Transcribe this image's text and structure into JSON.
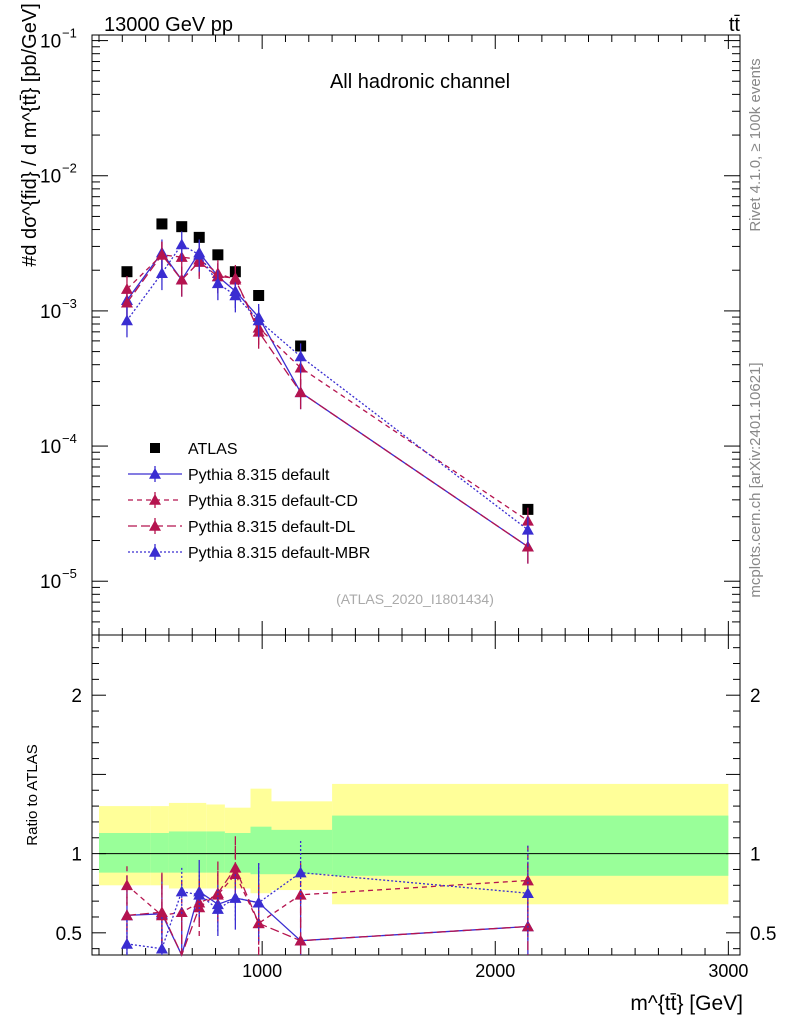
{
  "header": {
    "left": "13000 GeV pp",
    "right": "tt̄"
  },
  "side_labels": {
    "rivet": "Rivet 4.1.0, ≥ 100k events",
    "mcplots": "mcplots.cern.ch [arXiv:2401.10621]"
  },
  "chart_data": {
    "type": "line",
    "title": "All hadronic channel",
    "analysis_id": "(ATLAS_2020_I1801434)",
    "xlabel": "m^{tt̄} [GeV]",
    "ylabel": "#d dσ^{fid} / d m^{tt̄} [pb/GeV]",
    "ratio_ylabel": "Ratio to ATLAS",
    "xlim": [
      270,
      3050
    ],
    "ylim": [
      4e-06,
      0.11
    ],
    "ratio_ylim": [
      0.36,
      2.38
    ],
    "log_y": true,
    "x_ticks": [
      1000,
      2000,
      3000
    ],
    "y_ticks": [
      {
        "value": 0.1,
        "base": "10",
        "exp": "−1"
      },
      {
        "value": 0.01,
        "base": "10",
        "exp": "−2"
      },
      {
        "value": 0.001,
        "base": "10",
        "exp": "−3"
      },
      {
        "value": 0.0001,
        "base": "10",
        "exp": "−4"
      },
      {
        "value": 1e-05,
        "base": "10",
        "exp": "−5"
      }
    ],
    "ratio_ticks": [
      {
        "value": 0.5,
        "label": "0.5"
      },
      {
        "value": 1,
        "label": "1"
      },
      {
        "value": 2,
        "label": "2"
      }
    ],
    "x": [
      420,
      570,
      655,
      730,
      810,
      885,
      985,
      1165,
      2140
    ],
    "x_edges": [
      300,
      450,
      530,
      610,
      690,
      770,
      850,
      950,
      1050,
      1300,
      3000
    ],
    "band_inner": [
      [
        0.88,
        1.13
      ],
      [
        0.88,
        1.13
      ],
      [
        0.88,
        1.14
      ],
      [
        0.88,
        1.14
      ],
      [
        0.88,
        1.14
      ],
      [
        0.88,
        1.13
      ],
      [
        0.87,
        1.17
      ],
      [
        0.87,
        1.15
      ],
      [
        0.86,
        1.24
      ]
    ],
    "band_outer": [
      [
        0.8,
        1.3
      ],
      [
        0.8,
        1.3
      ],
      [
        0.78,
        1.32
      ],
      [
        0.78,
        1.32
      ],
      [
        0.78,
        1.31
      ],
      [
        0.78,
        1.29
      ],
      [
        0.75,
        1.41
      ],
      [
        0.77,
        1.33
      ],
      [
        0.68,
        1.44
      ]
    ],
    "band_x_edges": [
      300,
      520,
      600,
      680,
      760,
      840,
      950,
      1040,
      1300,
      3000
    ],
    "series": [
      {
        "name": "ATLAS",
        "color": "#000000",
        "marker": "square",
        "dash": "none",
        "values": [
          0.00195,
          0.0044,
          0.0042,
          0.0035,
          0.0026,
          0.00195,
          0.0013,
          0.00055,
          3.4e-05
        ],
        "ratio": []
      },
      {
        "name": "Pythia 8.315 default",
        "color": "#3a2dd1",
        "marker": "triangle",
        "dash": "solid",
        "values": [
          0.0012,
          0.0027,
          0.0017,
          0.0027,
          0.0018,
          0.0014,
          0.0009,
          0.00025,
          1.8e-05
        ],
        "ratio": [
          0.61,
          0.62,
          0.34,
          0.76,
          0.68,
          0.72,
          0.69,
          0.45,
          0.54
        ],
        "err": [
          0.25,
          0.25,
          0.3,
          0.2,
          0.2,
          0.2,
          0.25,
          0.3,
          0.4
        ]
      },
      {
        "name": "Pythia 8.315 default-CD",
        "color": "#b5144f",
        "marker": "triangle",
        "dash": "dashed",
        "values": [
          0.00145,
          0.0026,
          0.0025,
          0.0024,
          0.0019,
          0.0017,
          0.00075,
          0.00038,
          2.8e-05
        ],
        "ratio": [
          0.8,
          0.61,
          0.63,
          0.69,
          0.74,
          0.87,
          0.56,
          0.74,
          0.83
        ],
        "err": [
          0.12,
          0.2,
          0.2,
          0.15,
          0.15,
          0.18,
          0.25,
          0.2,
          0.22
        ]
      },
      {
        "name": "Pythia 8.315 default-DL",
        "color": "#b5144f",
        "marker": "triangle",
        "dash": "longdash",
        "values": [
          0.00115,
          0.0026,
          0.0017,
          0.0023,
          0.0018,
          0.00175,
          0.0007,
          0.00025,
          1.8e-05
        ],
        "ratio": [
          0.61,
          0.63,
          0.35,
          0.66,
          0.75,
          0.91,
          0.56,
          0.45,
          0.54
        ],
        "err": [
          0.2,
          0.25,
          0.3,
          0.18,
          0.2,
          0.2,
          0.25,
          0.3,
          0.4
        ]
      },
      {
        "name": "Pythia 8.315 default-MBR",
        "color": "#3a2dd1",
        "marker": "triangle",
        "dash": "dotted",
        "values": [
          0.00085,
          0.0019,
          0.0031,
          0.0026,
          0.0016,
          0.0013,
          0.00085,
          0.00046,
          2.4e-05
        ],
        "ratio": [
          0.43,
          0.4,
          0.76,
          0.74,
          0.65,
          0.72,
          0.69,
          0.88,
          0.75
        ],
        "err": [
          0.15,
          0.2,
          0.15,
          0.15,
          0.15,
          0.15,
          0.25,
          0.2,
          0.3
        ]
      }
    ]
  }
}
